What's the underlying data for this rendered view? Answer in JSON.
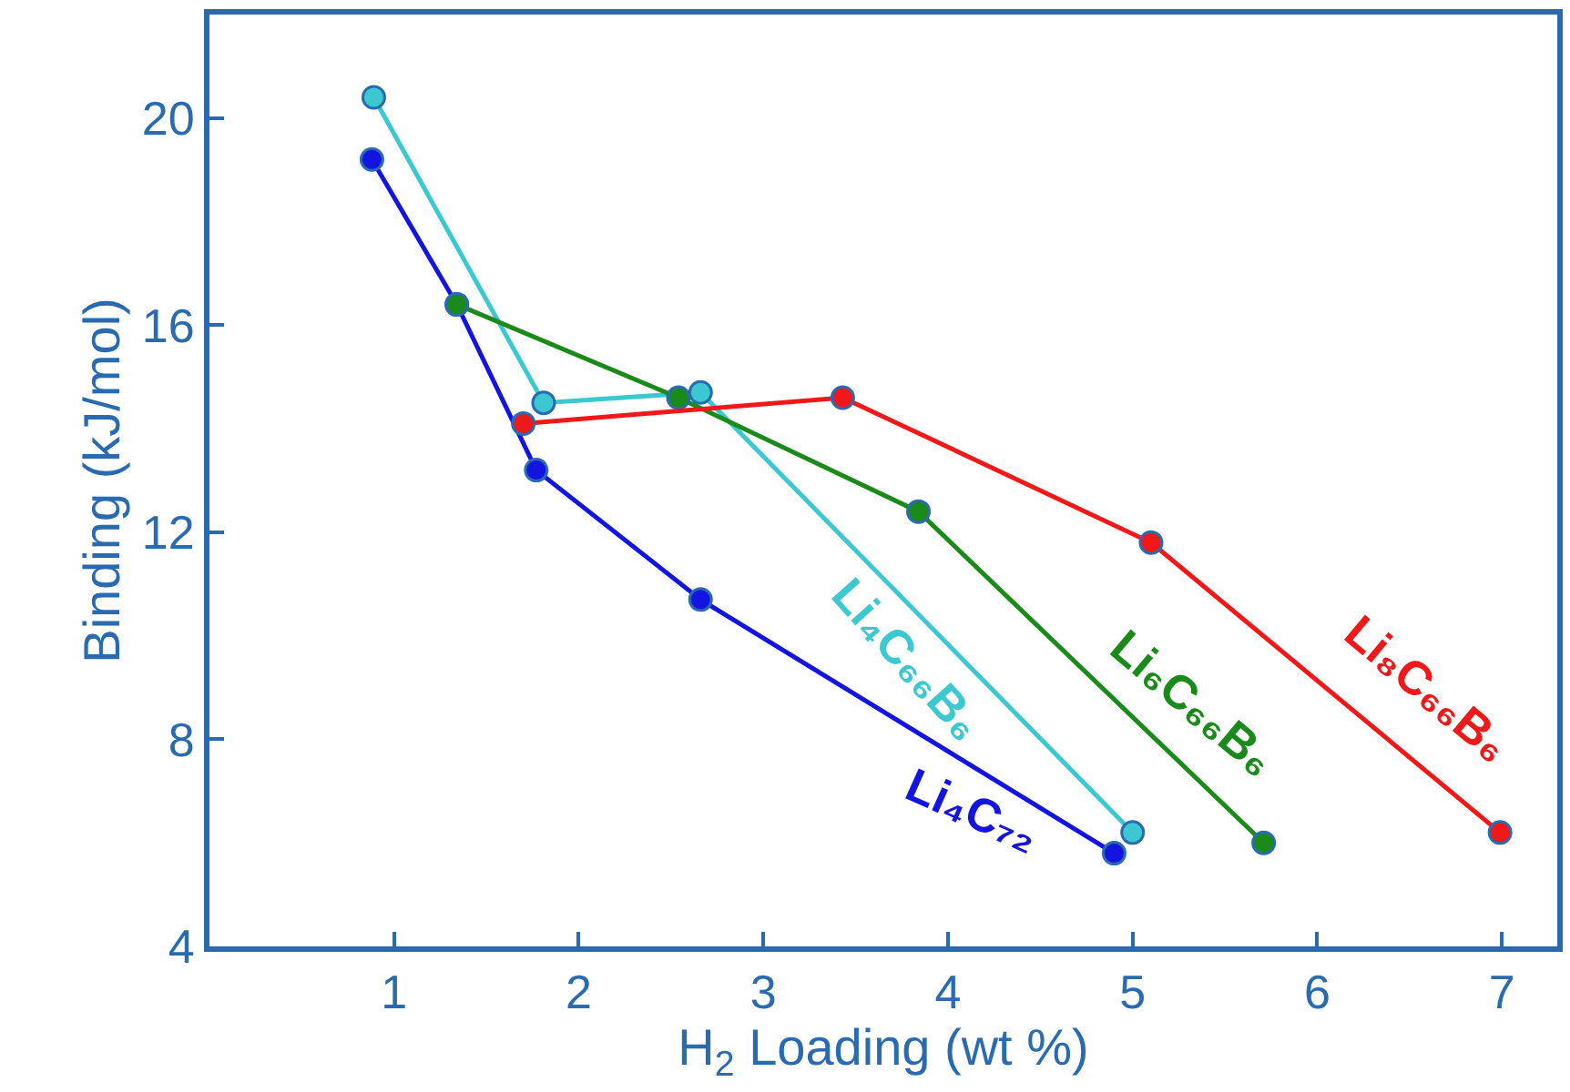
{
  "chart_data": {
    "type": "line",
    "xlabel": "H$_{2}$ Loading (wt %)",
    "ylabel": "Binding (kJ/mol)",
    "xlim": [
      0,
      7.3
    ],
    "ylim": [
      4,
      22
    ],
    "xticks": [
      1,
      2,
      3,
      4,
      5,
      6,
      7
    ],
    "yticks": [
      4,
      8,
      12,
      16,
      20
    ],
    "legend": false,
    "marker": "circle",
    "line_style": "solid",
    "series": [
      {
        "name": "Li₄C₇₂",
        "color": "#1414e0",
        "x": [
          0.88,
          1.34,
          1.77,
          2.66,
          4.9
        ],
        "values": [
          19.2,
          16.4,
          13.2,
          10.7,
          5.8
        ]
      },
      {
        "name": "Li₄C₆₆B₆",
        "color": "#3cc8d0",
        "x": [
          0.89,
          1.81,
          2.66,
          5.0
        ],
        "values": [
          20.4,
          14.5,
          14.7,
          6.2
        ]
      },
      {
        "name": "Li₆C₆₆B₆",
        "color": "#1a8a1a",
        "x": [
          1.34,
          2.54,
          3.84,
          5.71
        ],
        "values": [
          16.4,
          14.6,
          12.4,
          6.0
        ]
      },
      {
        "name": "Li₈C₆₆B₆",
        "color": "#f01818",
        "x": [
          1.7,
          3.43,
          5.1,
          6.99
        ],
        "values": [
          14.1,
          14.6,
          11.8,
          6.2
        ]
      }
    ]
  }
}
